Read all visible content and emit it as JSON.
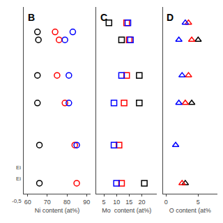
{
  "chart_data": [
    {
      "type": "scatter",
      "title": "B",
      "xlabel": "Ni content (at%)",
      "xlim": [
        58,
        92
      ],
      "xticks": [
        60,
        70,
        80,
        90
      ],
      "ylim": [
        -0.3,
        6.8
      ],
      "yticks": [],
      "grid": false,
      "tick_labels": "x",
      "series": [
        {
          "color": "black",
          "marker": "circle-open",
          "x": [
            65,
            65.5,
            65,
            65,
            66,
            66
          ],
          "values": [
            5.85,
            5.55,
            4.2,
            3.15,
            1.55,
            0.1
          ]
        },
        {
          "color": "red",
          "marker": "circle-open",
          "x": [
            74,
            76,
            75,
            79,
            84,
            85
          ],
          "values": [
            5.85,
            5.55,
            4.2,
            3.15,
            1.55,
            0.1
          ]
        },
        {
          "color": "blue",
          "marker": "circle-open",
          "x": [
            83,
            79,
            81,
            81,
            85
          ],
          "values": [
            5.85,
            5.55,
            4.2,
            3.15,
            1.55
          ]
        }
      ],
      "annotations": [
        {
          "text": "Ei"
        },
        {
          "text": "Ei"
        },
        {
          "text": "-0,5"
        }
      ]
    },
    {
      "type": "scatter",
      "title": "C",
      "xlabel": "Mo  content (at%)",
      "xlim": [
        2,
        26
      ],
      "xticks": [
        5,
        10,
        15,
        20
      ],
      "ylim": [
        -0.3,
        6.8
      ],
      "yticks": [],
      "grid": false,
      "tick_labels": "x",
      "series": [
        {
          "color": "black",
          "marker": "square-open",
          "x": [
            7,
            12,
            19,
            19,
            21
          ],
          "values": [
            6.2,
            5.55,
            4.2,
            3.15,
            0.1
          ]
        },
        {
          "color": "red",
          "marker": "square-open",
          "x": [
            14,
            15,
            14,
            13,
            11,
            12
          ],
          "values": [
            6.2,
            5.55,
            4.2,
            3.15,
            1.55,
            0.1
          ]
        },
        {
          "color": "blue",
          "marker": "square-open",
          "x": [
            14.5,
            15.5,
            12,
            9,
            9,
            10
          ],
          "values": [
            6.2,
            5.55,
            4.2,
            3.15,
            1.55,
            0.1
          ]
        }
      ]
    },
    {
      "type": "scatter",
      "title": "D",
      "xlabel": "O content (at%",
      "xlim": [
        -0.5,
        8.0
      ],
      "xticks": [
        0,
        5
      ],
      "ylim": [
        -0.3,
        6.8
      ],
      "yticks": [],
      "grid": false,
      "tick_labels": "x",
      "series": [
        {
          "color": "black",
          "marker": "triangle-up-open",
          "x": [
            5,
            4,
            3
          ],
          "values": [
            5.55,
            3.15,
            0.1
          ]
        },
        {
          "color": "red",
          "marker": "triangle-up-open",
          "x": [
            3.5,
            4,
            3.5,
            3,
            2.5
          ],
          "values": [
            6.2,
            5.55,
            4.2,
            3.15,
            0.1
          ]
        },
        {
          "color": "blue",
          "marker": "triangle-up-open",
          "x": [
            3,
            2,
            2.5,
            2,
            1.5
          ],
          "values": [
            6.2,
            5.55,
            4.2,
            3.15,
            1.55
          ]
        }
      ]
    }
  ]
}
